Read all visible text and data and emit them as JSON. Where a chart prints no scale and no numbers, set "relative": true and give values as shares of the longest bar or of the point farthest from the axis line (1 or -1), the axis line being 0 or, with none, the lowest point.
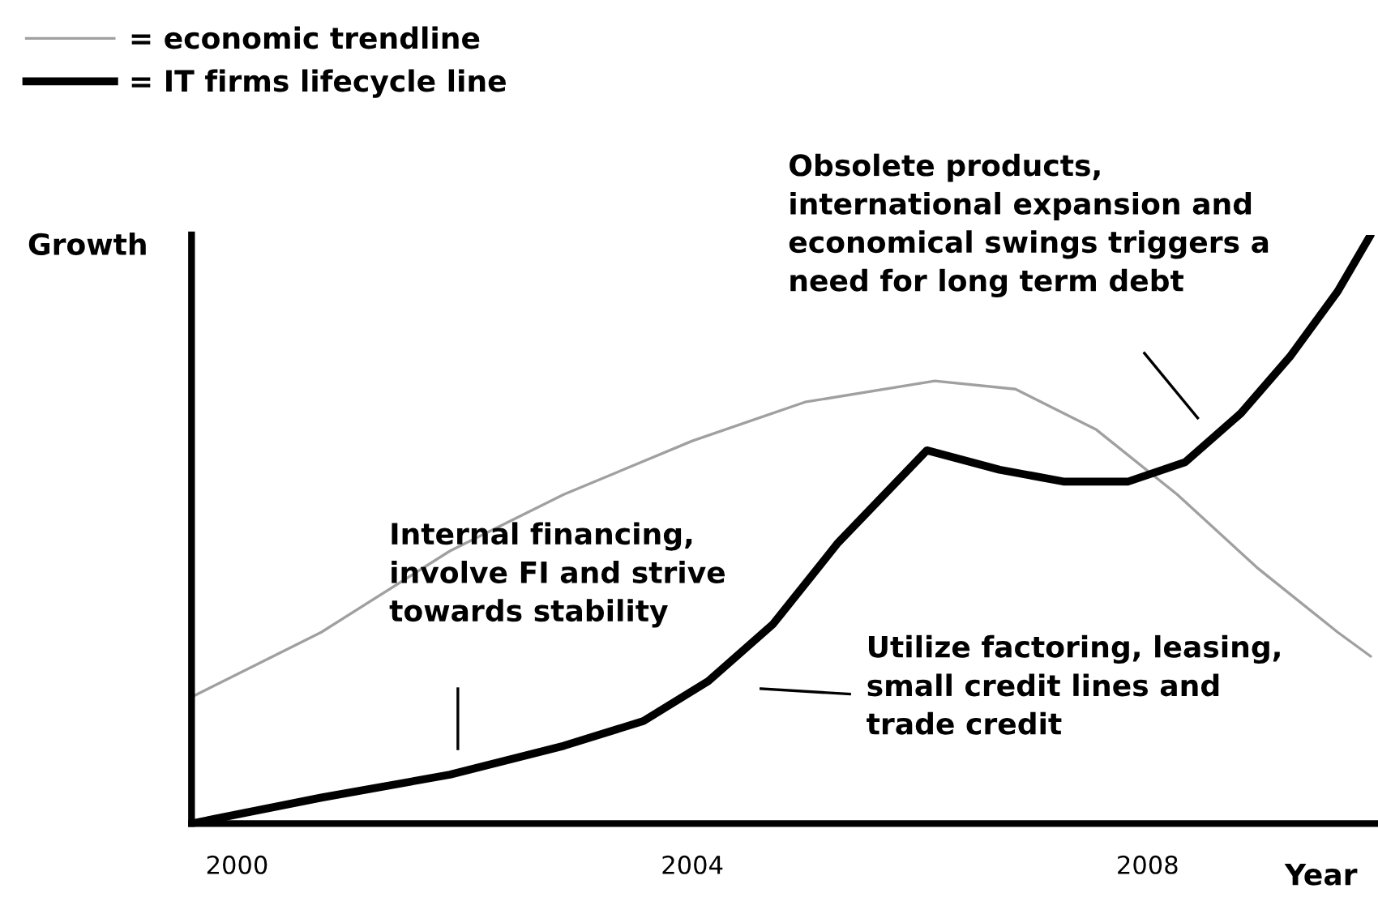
{
  "chart_data": {
    "type": "line",
    "relative": true,
    "xlabel": "Year",
    "ylabel": "Growth",
    "xlim": [
      1999.6,
      2010
    ],
    "xticks": [
      2000,
      2004,
      2008
    ],
    "legend": "top left",
    "grid": false,
    "marker": "none",
    "line_style": "solid",
    "series": [
      {
        "name": "= economic trendline",
        "color": "#a0a0a0",
        "x": [
          1999.6,
          2000.74,
          2001.87,
          2002.87,
          2004.0,
          2004.99,
          2006.13,
          2006.84,
          2007.55,
          2008.26,
          2008.96,
          2009.67,
          2009.96
        ],
        "values": [
          0.215,
          0.325,
          0.463,
          0.559,
          0.65,
          0.716,
          0.752,
          0.738,
          0.669,
          0.559,
          0.435,
          0.325,
          0.284
        ]
      },
      {
        "name": "= IT firms lifecycle line",
        "color": "#000000",
        "x": [
          1999.6,
          2000.74,
          2001.87,
          2002.87,
          2003.57,
          2004.14,
          2004.71,
          2005.28,
          2006.06,
          2006.7,
          2007.26,
          2007.83,
          2008.33,
          2008.82,
          2009.25,
          2009.67,
          2009.96
        ],
        "values": [
          0,
          0.044,
          0.083,
          0.132,
          0.174,
          0.242,
          0.339,
          0.477,
          0.634,
          0.601,
          0.581,
          0.581,
          0.614,
          0.697,
          0.793,
          0.904,
          1.0
        ]
      }
    ],
    "annotations": [
      "Internal financing,\ninvolve FI and strive\ntowards stability",
      "Utilize factoring, leasing,\nsmall credit lines and\ntrade credit",
      "Obsolete products,\ninternational expansion and\neconomical swings triggers a\nneed for long term debt"
    ]
  }
}
